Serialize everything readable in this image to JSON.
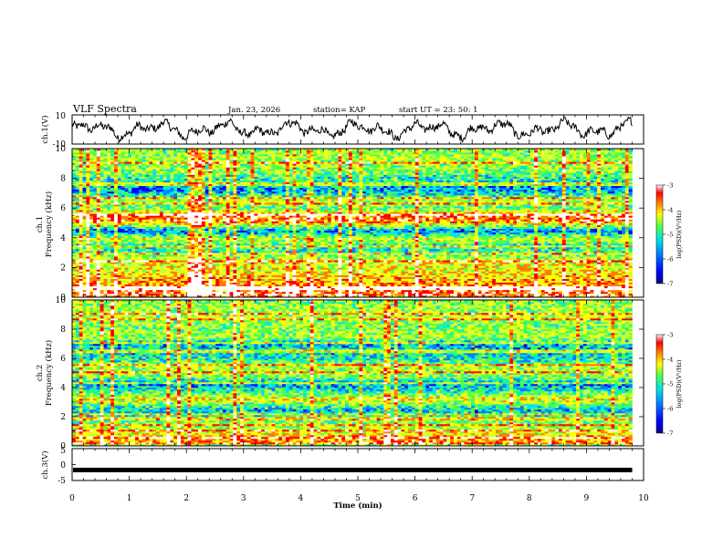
{
  "header": {
    "title": "VLF Spectra",
    "date": "Jan. 23, 2026",
    "station": "station= KAP",
    "start": "start  UT  =   23: 50: 1"
  },
  "colors": {
    "jet": [
      "#00007f",
      "#0000ff",
      "#007fff",
      "#00e5e5",
      "#4cff4c",
      "#c8ff3c",
      "#ffff00",
      "#ff7f00",
      "#ff0000",
      "#ffffff"
    ],
    "trace": "#000000"
  },
  "chart_data": [
    {
      "type": "line",
      "name": "ch1-waveform",
      "ylabel": "ch.1(V)",
      "ylim": [
        -10,
        10
      ],
      "yticks": [
        "10",
        "-10"
      ],
      "xlim": [
        0,
        10
      ],
      "x_end": 9.8,
      "description_values": "noisy oscillating voltage trace between about -8 and 10 V"
    },
    {
      "type": "heatmap",
      "name": "ch1-spectrogram",
      "ylabel_line1": "ch.1",
      "ylabel_line2": "Frequency (kHz)",
      "ylim": [
        0,
        10
      ],
      "yticks": [
        "0",
        "2",
        "4",
        "6",
        "8",
        "10"
      ],
      "xlim": [
        0,
        9.8
      ],
      "band_profile": [
        {
          "f": 0.1,
          "level": 0.9
        },
        {
          "f": 0.5,
          "level": 0.85
        },
        {
          "f": 1.0,
          "level": 0.75
        },
        {
          "f": 1.3,
          "level": 0.7
        },
        {
          "f": 2.0,
          "level": 0.62
        },
        {
          "f": 2.4,
          "level": 0.65
        },
        {
          "f": 3.0,
          "level": 0.4
        },
        {
          "f": 3.5,
          "level": 0.38
        },
        {
          "f": 3.9,
          "level": 0.6
        },
        {
          "f": 4.5,
          "level": 0.2
        },
        {
          "f": 4.8,
          "level": 0.5
        },
        {
          "f": 5.2,
          "level": 0.85
        },
        {
          "f": 5.5,
          "level": 0.8
        },
        {
          "f": 6.0,
          "level": 0.45
        },
        {
          "f": 6.5,
          "level": 0.55
        },
        {
          "f": 7.2,
          "level": 0.25
        },
        {
          "f": 7.8,
          "level": 0.35
        },
        {
          "f": 8.5,
          "level": 0.5
        },
        {
          "f": 9.3,
          "level": 0.55
        },
        {
          "f": 10,
          "level": 0.5
        }
      ],
      "colorbar": {
        "label": "log(PSD)(V²/Hz)",
        "min": -7,
        "max": -3,
        "ticks": [
          "-3",
          "-4",
          "-5",
          "-6",
          "-7"
        ]
      }
    },
    {
      "type": "heatmap",
      "name": "ch2-spectrogram",
      "ylabel_line1": "ch.2",
      "ylabel_line2": "Frequency (kHz)",
      "ylim": [
        0,
        10
      ],
      "yticks": [
        "0",
        "2",
        "4",
        "6",
        "8",
        "10"
      ],
      "xlim": [
        0,
        9.8
      ],
      "band_profile": [
        {
          "f": 0.1,
          "level": 0.9
        },
        {
          "f": 0.4,
          "level": 0.75
        },
        {
          "f": 1.0,
          "level": 0.6
        },
        {
          "f": 1.5,
          "level": 0.5
        },
        {
          "f": 2.0,
          "level": 0.4
        },
        {
          "f": 2.5,
          "level": 0.3
        },
        {
          "f": 3.2,
          "level": 0.65
        },
        {
          "f": 3.6,
          "level": 0.45
        },
        {
          "f": 4.2,
          "level": 0.25
        },
        {
          "f": 4.8,
          "level": 0.5
        },
        {
          "f": 5.4,
          "level": 0.55
        },
        {
          "f": 6.0,
          "level": 0.35
        },
        {
          "f": 7.0,
          "level": 0.3
        },
        {
          "f": 7.5,
          "level": 0.55
        },
        {
          "f": 8.2,
          "level": 0.5
        },
        {
          "f": 9.0,
          "level": 0.55
        },
        {
          "f": 10,
          "level": 0.5
        }
      ],
      "colorbar": {
        "label": "log(PSD)(V²/Hz)",
        "min": -7,
        "max": -3,
        "ticks": [
          "-3",
          "-4",
          "-5",
          "-6",
          "-7"
        ]
      }
    },
    {
      "type": "line",
      "name": "ch3-waveform",
      "ylabel": "ch.3(V)",
      "ylim": [
        -5,
        5
      ],
      "yticks": [
        "5",
        "0",
        "-5"
      ],
      "xlim": [
        0,
        10
      ],
      "x_end": 9.8,
      "level": -1.7
    }
  ],
  "xaxis": {
    "label": "Time (min)",
    "ticks": [
      "0",
      "1",
      "2",
      "3",
      "4",
      "5",
      "6",
      "7",
      "8",
      "9",
      "10"
    ]
  }
}
